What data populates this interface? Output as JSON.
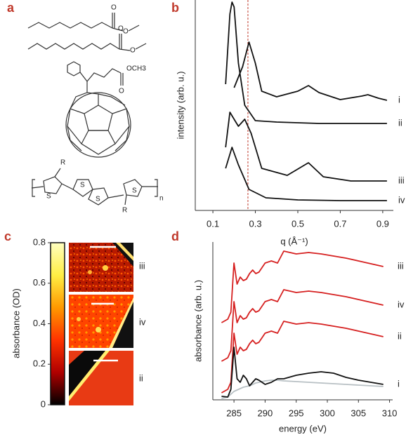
{
  "panel_labels": [
    "a",
    "b",
    "c",
    "d"
  ],
  "structures": {
    "labels": [
      "O",
      "O",
      "O",
      "O",
      "OCH3",
      "O",
      "R",
      "S",
      "S",
      "S",
      "S",
      "R",
      "n"
    ]
  },
  "chart_data": [
    {
      "type": "line",
      "xlabel": "q (Å⁻¹)",
      "ylabel": "intensity (arb. u.)",
      "xlim": [
        0.017,
        0.95
      ],
      "xticks": [
        0.1,
        0.3,
        0.5,
        0.7,
        0.9
      ],
      "ylim": [
        0,
        300
      ],
      "vline": {
        "x": 0.265,
        "color": "#c0392b"
      },
      "series": [
        {
          "name": "i",
          "color": "#111111",
          "x": [
            0.2,
            0.24,
            0.27,
            0.3,
            0.33,
            0.4,
            0.5,
            0.55,
            0.6,
            0.7,
            0.8,
            0.83,
            0.88,
            0.92
          ],
          "values": [
            175,
            205,
            240,
            210,
            170,
            162,
            170,
            178,
            168,
            158,
            163,
            165,
            160,
            157
          ]
        },
        {
          "name": "ii",
          "color": "#111111",
          "x": [
            0.16,
            0.18,
            0.19,
            0.2,
            0.22,
            0.25,
            0.3,
            0.4,
            0.6,
            0.92
          ],
          "values": [
            180,
            280,
            297,
            290,
            210,
            150,
            128,
            126,
            124,
            124
          ]
        },
        {
          "name": "iii",
          "color": "#111111",
          "x": [
            0.16,
            0.18,
            0.2,
            0.22,
            0.25,
            0.28,
            0.33,
            0.45,
            0.55,
            0.62,
            0.75,
            0.92
          ],
          "values": [
            90,
            140,
            130,
            120,
            130,
            110,
            60,
            50,
            68,
            48,
            42,
            42
          ]
        },
        {
          "name": "iv",
          "color": "#111111",
          "x": [
            0.16,
            0.19,
            0.22,
            0.27,
            0.35,
            0.5,
            0.7,
            0.92
          ],
          "values": [
            60,
            90,
            65,
            30,
            18,
            15,
            14,
            14
          ]
        }
      ]
    },
    {
      "type": "colorbar",
      "ylabel": "absorbance (OD)",
      "ylim": [
        0,
        0.8
      ],
      "yticks": [
        0,
        0.2,
        0.4,
        0.6,
        0.8
      ],
      "colormap": [
        "#000000",
        "#b00000",
        "#ff3300",
        "#ff9900",
        "#ffee44",
        "#ffffc0"
      ],
      "images": [
        "iii",
        "iv",
        "ii"
      ]
    },
    {
      "type": "line",
      "xlabel": "energy (eV)",
      "ylabel": "absorbance (arb. u.)",
      "xlim": [
        281.6,
        310.5
      ],
      "xticks": [
        285,
        290,
        295,
        300,
        305,
        310
      ],
      "ylim": [
        0,
        225
      ],
      "x": [
        283,
        284,
        284.5,
        285,
        285.5,
        286,
        286.5,
        287,
        287.5,
        288,
        288.5,
        289,
        290,
        291,
        292,
        293,
        295,
        297,
        299,
        301,
        303,
        305,
        307,
        309
      ],
      "series": [
        {
          "name": "iii",
          "color": "#d62020",
          "label_color": "#a03030",
          "values": [
            110,
            115,
            125,
            195,
            165,
            175,
            170,
            172,
            180,
            185,
            180,
            182,
            195,
            198,
            195,
            212,
            208,
            210,
            208,
            205,
            202,
            198,
            194,
            190
          ]
        },
        {
          "name": "iv",
          "color": "#d62020",
          "label_color": "#a03030",
          "values": [
            55,
            60,
            70,
            140,
            110,
            120,
            115,
            117,
            125,
            130,
            125,
            127,
            140,
            143,
            140,
            157,
            153,
            155,
            153,
            150,
            147,
            143,
            139,
            135
          ]
        },
        {
          "name": "ii",
          "color": "#d62020",
          "label_color": "#a03030",
          "values": [
            10,
            15,
            25,
            95,
            65,
            75,
            70,
            72,
            80,
            85,
            80,
            82,
            95,
            98,
            95,
            112,
            108,
            110,
            108,
            105,
            102,
            98,
            94,
            90
          ]
        },
        {
          "color": "#b8c0c4",
          "values": [
            2,
            4,
            8,
            12,
            14,
            16,
            18,
            19,
            20,
            22,
            24,
            25,
            27,
            28,
            28,
            27,
            26,
            25,
            24,
            23,
            22,
            21,
            20,
            19
          ]
        },
        {
          "name": "i",
          "color": "#111111",
          "label_color": "#999999",
          "values": [
            5,
            4,
            15,
            75,
            30,
            25,
            35,
            30,
            20,
            25,
            30,
            28,
            22,
            25,
            30,
            30,
            35,
            38,
            40,
            38,
            32,
            28,
            25,
            22
          ]
        }
      ]
    }
  ]
}
